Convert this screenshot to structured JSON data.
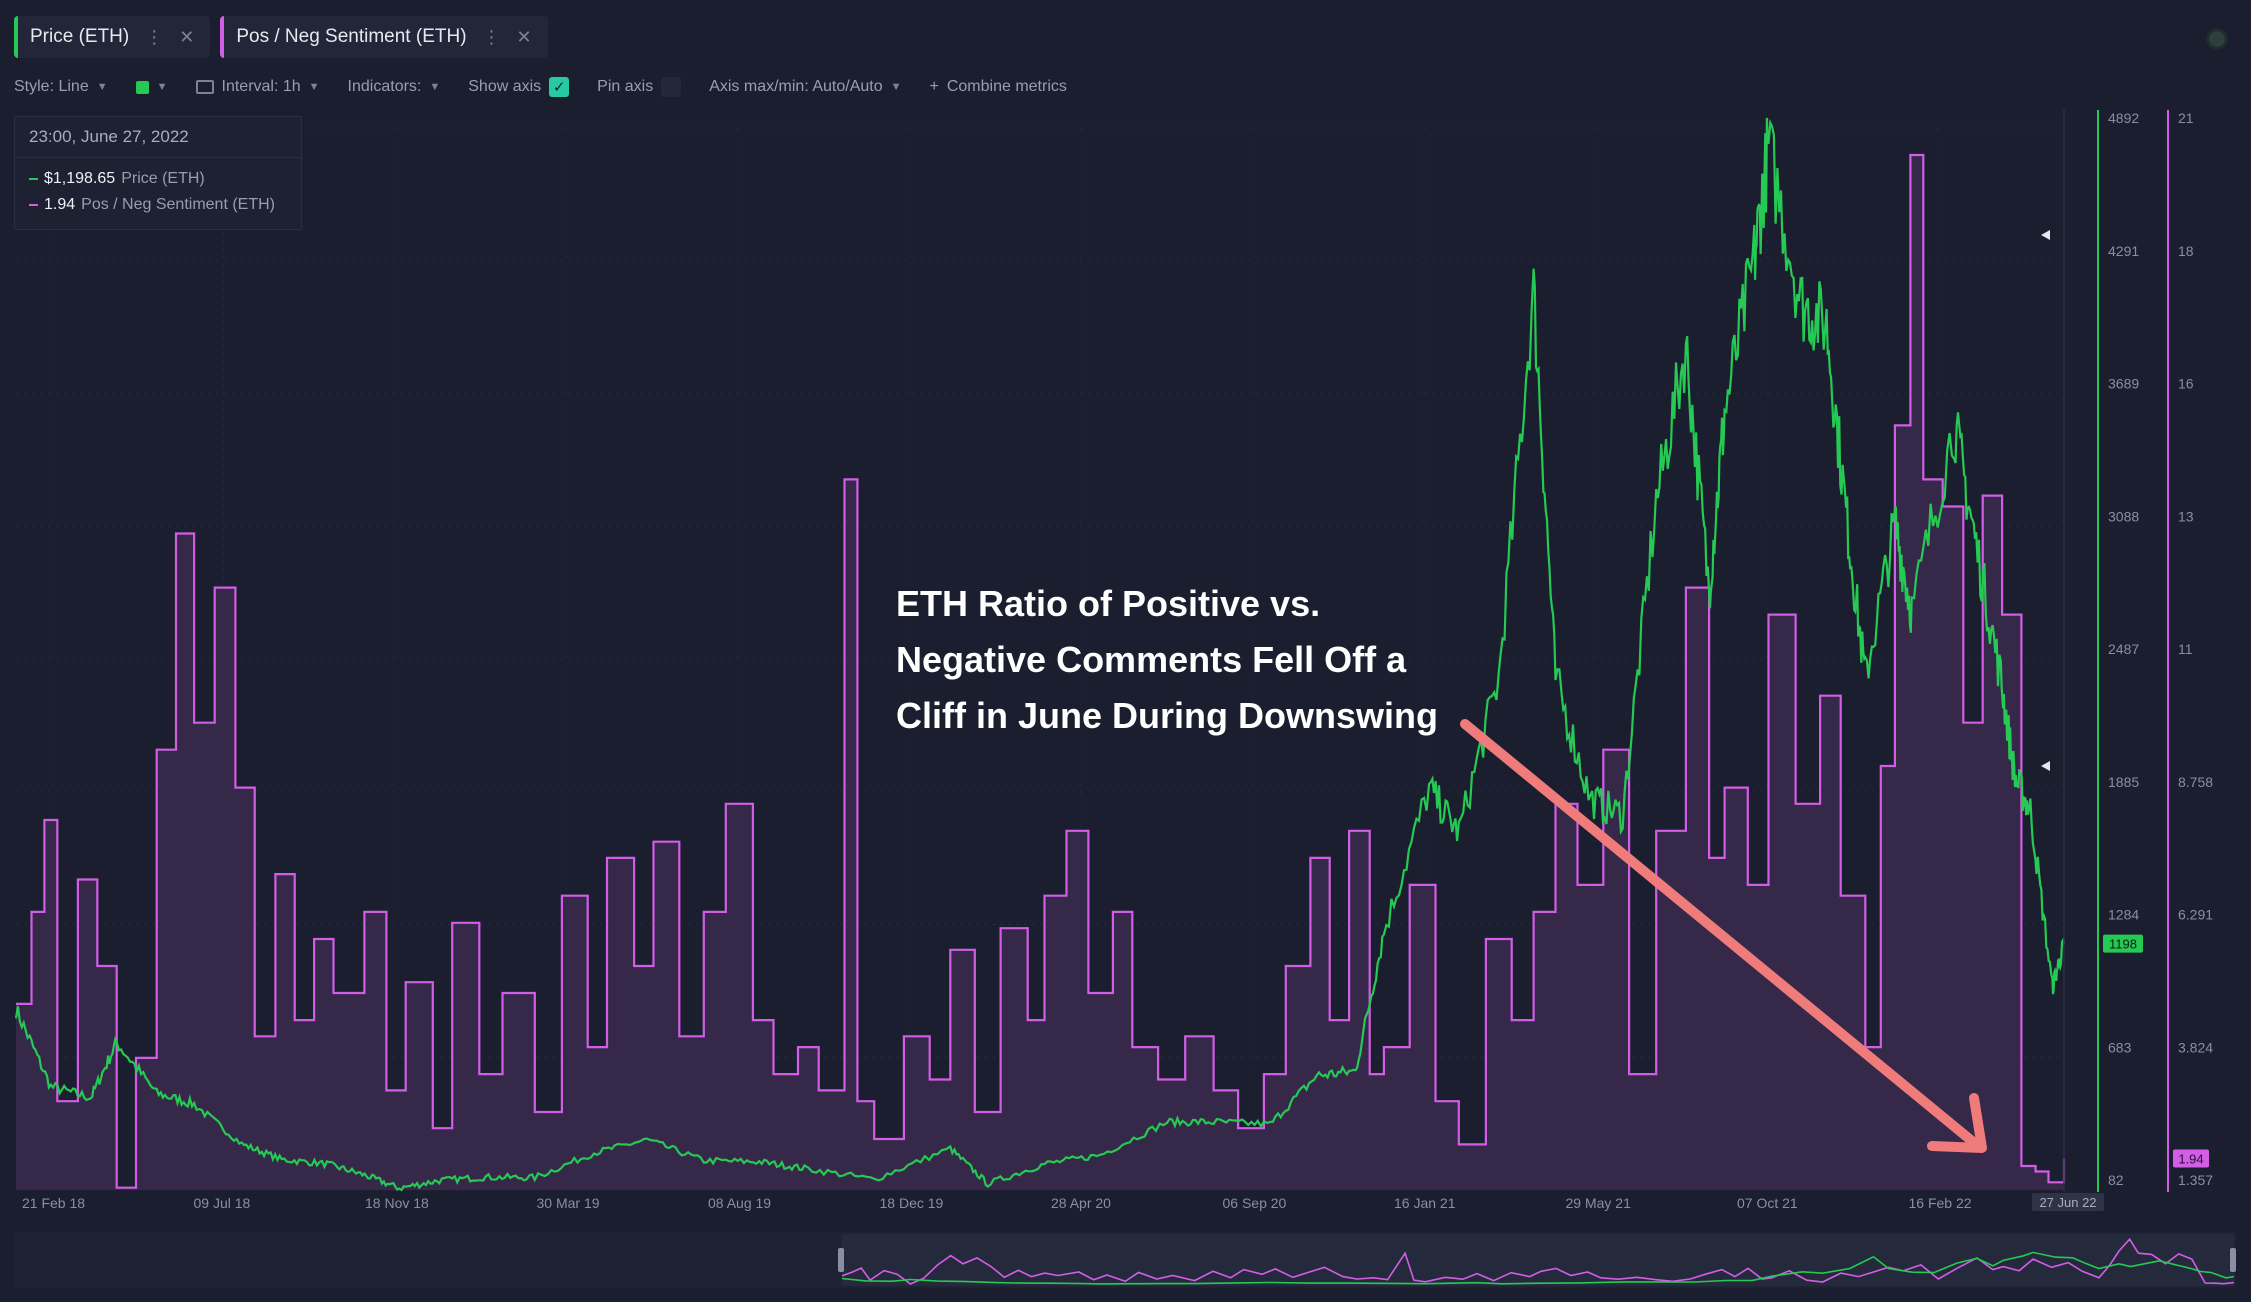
{
  "tabs": [
    {
      "label": "Price (ETH)",
      "color": "#26c953"
    },
    {
      "label": "Pos / Neg Sentiment (ETH)",
      "color": "#d25ee6"
    }
  ],
  "toolbar": {
    "style": "Style: Line",
    "interval": "Interval: 1h",
    "indicators": "Indicators:",
    "show_axis": "Show axis",
    "pin_axis": "Pin axis",
    "axis_maxmin": "Axis max/min: Auto/Auto",
    "combine": "Combine metrics"
  },
  "legend": {
    "date": "23:00, June 27, 2022",
    "price_value": "$1,198.65",
    "price_name": "Price (ETH)",
    "sent_value": "1.94",
    "sent_name": "Pos / Neg Sentiment (ETH)"
  },
  "annotation": {
    "lines": [
      "ETH Ratio of Positive vs.",
      "Negative Comments Fell Off a",
      "Cliff in June During Downswing"
    ],
    "arrow_color": "#f07b7b"
  },
  "chart_data": {
    "type": "line",
    "x_ticks": [
      "21 Feb 18",
      "09 Jul 18",
      "18 Nov 18",
      "30 Mar 19",
      "08 Aug 19",
      "18 Dec 19",
      "28 Apr 20",
      "06 Sep 20",
      "16 Jan 21",
      "29 May 21",
      "07 Oct 21",
      "16 Feb 22"
    ],
    "x_end_label": "27 Jun 22",
    "x_start": "2018-02-21",
    "x_end": "2022-06-27",
    "price_axis": {
      "ticks": [
        "4892",
        "4291",
        "3689",
        "3088",
        "2487",
        "1885",
        "1284",
        "683",
        "82"
      ],
      "min": 82,
      "max": 4892,
      "current": "1198"
    },
    "sent_axis": {
      "ticks": [
        "21",
        "18",
        "16",
        "13",
        "11",
        "8.758",
        "6.291",
        "3.824",
        "1.357"
      ],
      "min": 1.357,
      "max": 21,
      "current": "1.94"
    },
    "colors": {
      "price": "#26c953",
      "sentiment": "#d25ee6",
      "sentiment_fill": "#3a2a4e"
    },
    "series": [
      {
        "name": "Price (ETH)",
        "points": [
          [
            "2018-02-21",
            900
          ],
          [
            "2018-03-20",
            550
          ],
          [
            "2018-04-20",
            500
          ],
          [
            "2018-05-10",
            750
          ],
          [
            "2018-06-10",
            520
          ],
          [
            "2018-07-09",
            470
          ],
          [
            "2018-08-15",
            290
          ],
          [
            "2018-09-15",
            220
          ],
          [
            "2018-10-20",
            200
          ],
          [
            "2018-11-18",
            150
          ],
          [
            "2018-12-15",
            90
          ],
          [
            "2019-01-15",
            125
          ],
          [
            "2019-02-20",
            140
          ],
          [
            "2019-03-30",
            138
          ],
          [
            "2019-05-15",
            250
          ],
          [
            "2019-06-25",
            310
          ],
          [
            "2019-08-08",
            215
          ],
          [
            "2019-09-20",
            210
          ],
          [
            "2019-10-25",
            180
          ],
          [
            "2019-12-18",
            130
          ],
          [
            "2020-02-15",
            270
          ],
          [
            "2020-03-15",
            110
          ],
          [
            "2020-04-28",
            200
          ],
          [
            "2020-06-10",
            240
          ],
          [
            "2020-08-01",
            390
          ],
          [
            "2020-09-06",
            390
          ],
          [
            "2020-10-20",
            380
          ],
          [
            "2020-11-25",
            600
          ],
          [
            "2020-12-25",
            620
          ],
          [
            "2021-01-16",
            1250
          ],
          [
            "2021-02-20",
            1900
          ],
          [
            "2021-03-15",
            1700
          ],
          [
            "2021-04-15",
            2400
          ],
          [
            "2021-05-12",
            4150
          ],
          [
            "2021-05-29",
            2400
          ],
          [
            "2021-06-25",
            1850
          ],
          [
            "2021-07-20",
            1780
          ],
          [
            "2021-08-15",
            3200
          ],
          [
            "2021-09-07",
            3900
          ],
          [
            "2021-09-25",
            2800
          ],
          [
            "2021-10-07",
            3600
          ],
          [
            "2021-10-30",
            4300
          ],
          [
            "2021-11-10",
            4800
          ],
          [
            "2021-12-05",
            4100
          ],
          [
            "2021-12-25",
            4000
          ],
          [
            "2022-01-10",
            3100
          ],
          [
            "2022-01-24",
            2400
          ],
          [
            "2022-02-16",
            3100
          ],
          [
            "2022-03-01",
            2700
          ],
          [
            "2022-04-03",
            3550
          ],
          [
            "2022-04-20",
            3000
          ],
          [
            "2022-05-09",
            2400
          ],
          [
            "2022-05-20",
            1950
          ],
          [
            "2022-06-01",
            1800
          ],
          [
            "2022-06-18",
            1000
          ],
          [
            "2022-06-27",
            1198
          ]
        ]
      },
      {
        "name": "Pos / Neg Sentiment (ETH)",
        "points": [
          [
            "2018-02-21",
            4.8
          ],
          [
            "2018-03-05",
            6.5
          ],
          [
            "2018-03-15",
            8.2
          ],
          [
            "2018-03-25",
            3.0
          ],
          [
            "2018-04-10",
            7.1
          ],
          [
            "2018-04-25",
            5.5
          ],
          [
            "2018-05-10",
            1.4
          ],
          [
            "2018-05-25",
            3.8
          ],
          [
            "2018-06-10",
            9.5
          ],
          [
            "2018-06-25",
            13.5
          ],
          [
            "2018-07-09",
            10.0
          ],
          [
            "2018-07-25",
            12.5
          ],
          [
            "2018-08-10",
            8.8
          ],
          [
            "2018-08-25",
            4.2
          ],
          [
            "2018-09-10",
            7.2
          ],
          [
            "2018-09-25",
            4.5
          ],
          [
            "2018-10-10",
            6.0
          ],
          [
            "2018-10-25",
            5.0
          ],
          [
            "2018-11-18",
            6.5
          ],
          [
            "2018-12-05",
            3.2
          ],
          [
            "2018-12-20",
            5.2
          ],
          [
            "2019-01-10",
            2.5
          ],
          [
            "2019-01-25",
            6.3
          ],
          [
            "2019-02-15",
            3.5
          ],
          [
            "2019-03-05",
            5.0
          ],
          [
            "2019-03-30",
            2.8
          ],
          [
            "2019-04-20",
            6.8
          ],
          [
            "2019-05-10",
            4.0
          ],
          [
            "2019-05-25",
            7.5
          ],
          [
            "2019-06-15",
            5.5
          ],
          [
            "2019-06-30",
            7.8
          ],
          [
            "2019-07-20",
            4.2
          ],
          [
            "2019-08-08",
            6.5
          ],
          [
            "2019-08-25",
            8.5
          ],
          [
            "2019-09-15",
            4.5
          ],
          [
            "2019-10-01",
            3.5
          ],
          [
            "2019-10-20",
            4.0
          ],
          [
            "2019-11-05",
            3.2
          ],
          [
            "2019-11-25",
            14.5
          ],
          [
            "2019-12-05",
            3.0
          ],
          [
            "2019-12-18",
            2.3
          ],
          [
            "2020-01-10",
            4.2
          ],
          [
            "2020-01-30",
            3.4
          ],
          [
            "2020-02-15",
            5.8
          ],
          [
            "2020-03-05",
            2.8
          ],
          [
            "2020-03-25",
            6.2
          ],
          [
            "2020-04-15",
            4.5
          ],
          [
            "2020-04-28",
            6.8
          ],
          [
            "2020-05-15",
            8.0
          ],
          [
            "2020-06-01",
            5.0
          ],
          [
            "2020-06-20",
            6.5
          ],
          [
            "2020-07-05",
            4.0
          ],
          [
            "2020-07-25",
            3.4
          ],
          [
            "2020-08-15",
            4.2
          ],
          [
            "2020-09-06",
            3.2
          ],
          [
            "2020-09-25",
            2.5
          ],
          [
            "2020-10-15",
            3.5
          ],
          [
            "2020-11-01",
            5.5
          ],
          [
            "2020-11-20",
            7.5
          ],
          [
            "2020-12-05",
            4.5
          ],
          [
            "2020-12-20",
            8.0
          ],
          [
            "2021-01-05",
            3.5
          ],
          [
            "2021-01-16",
            4.0
          ],
          [
            "2021-02-05",
            7.0
          ],
          [
            "2021-02-25",
            3.0
          ],
          [
            "2021-03-15",
            2.2
          ],
          [
            "2021-04-05",
            6.0
          ],
          [
            "2021-04-25",
            4.5
          ],
          [
            "2021-05-12",
            6.5
          ],
          [
            "2021-05-29",
            8.5
          ],
          [
            "2021-06-15",
            7.0
          ],
          [
            "2021-07-05",
            9.5
          ],
          [
            "2021-07-25",
            3.5
          ],
          [
            "2021-08-15",
            8.0
          ],
          [
            "2021-09-07",
            12.5
          ],
          [
            "2021-09-25",
            7.5
          ],
          [
            "2021-10-07",
            8.8
          ],
          [
            "2021-10-25",
            7.0
          ],
          [
            "2021-11-10",
            12.0
          ],
          [
            "2021-12-01",
            8.5
          ],
          [
            "2021-12-20",
            10.5
          ],
          [
            "2022-01-05",
            6.8
          ],
          [
            "2022-01-24",
            4.0
          ],
          [
            "2022-02-05",
            9.2
          ],
          [
            "2022-02-16",
            15.5
          ],
          [
            "2022-02-28",
            20.5
          ],
          [
            "2022-03-10",
            14.5
          ],
          [
            "2022-03-25",
            14.0
          ],
          [
            "2022-04-10",
            10.0
          ],
          [
            "2022-04-25",
            14.2
          ],
          [
            "2022-05-10",
            12.0
          ],
          [
            "2022-05-25",
            1.8
          ],
          [
            "2022-06-05",
            1.7
          ],
          [
            "2022-06-15",
            1.5
          ],
          [
            "2022-06-27",
            1.94
          ]
        ]
      }
    ]
  }
}
